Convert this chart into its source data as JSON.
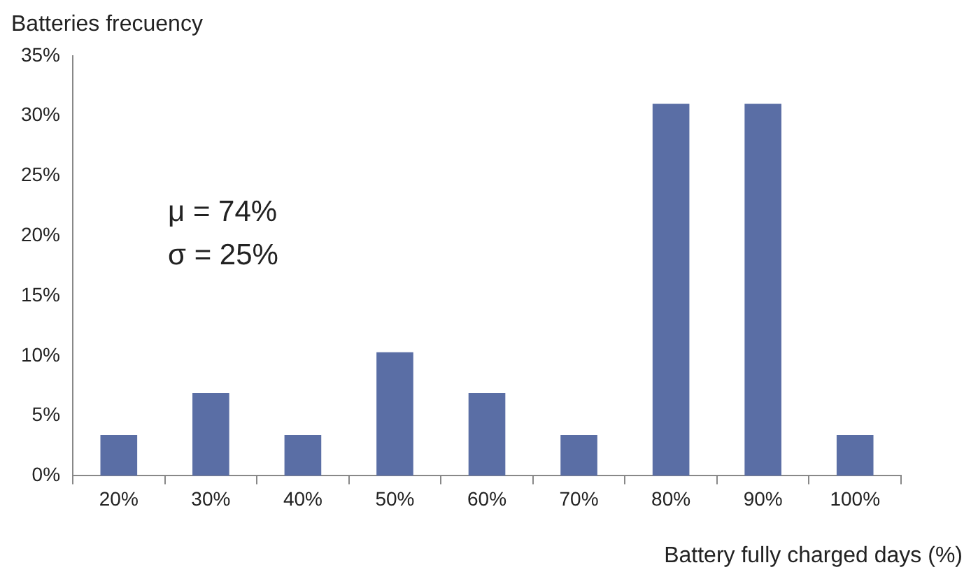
{
  "chart_data": {
    "type": "bar",
    "ylabel": "Batteries frecuency",
    "xlabel": "Battery fully charged days (%)",
    "annotations": [
      "μ = 74%",
      "σ = 25%"
    ],
    "categories": [
      "20%",
      "30%",
      "40%",
      "50%",
      "60%",
      "70%",
      "80%",
      "90%",
      "100%"
    ],
    "values": [
      3.4,
      6.9,
      3.4,
      10.3,
      6.9,
      3.4,
      31.0,
      31.0,
      3.4
    ],
    "color": "#5a6ea5",
    "ylim": [
      0,
      35
    ],
    "yticks": [
      {
        "value": 0,
        "label": "0%"
      },
      {
        "value": 5,
        "label": "5%"
      },
      {
        "value": 10,
        "label": "10%"
      },
      {
        "value": 15,
        "label": "15%"
      },
      {
        "value": 20,
        "label": "20%"
      },
      {
        "value": 25,
        "label": "25%"
      },
      {
        "value": 30,
        "label": "30%"
      },
      {
        "value": 35,
        "label": "35%"
      }
    ]
  }
}
